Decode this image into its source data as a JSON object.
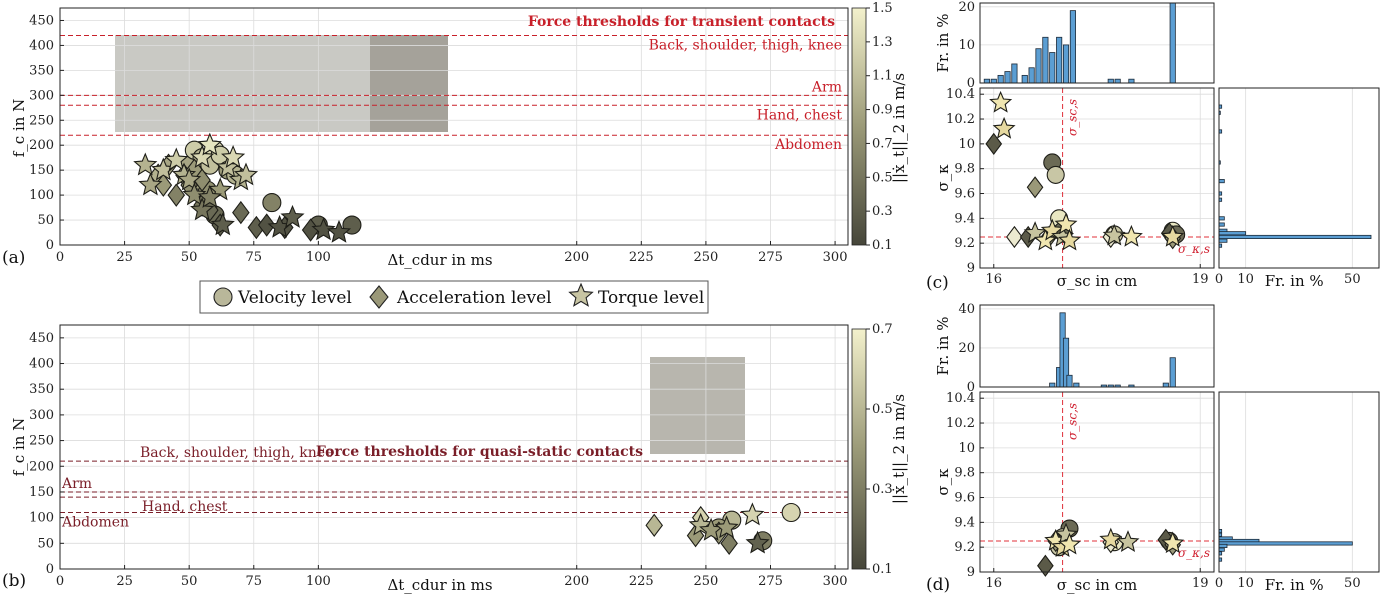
{
  "panel_labels": [
    "(a)",
    "(b)",
    "(c)",
    "(d)"
  ],
  "legend": {
    "items": [
      "Velocity level",
      "Acceleration level",
      "Torque level"
    ]
  },
  "colors": {
    "threshold_a": "#c8202a",
    "threshold_b": "#7a1e28",
    "hist": "#5b9ed3",
    "colormap": [
      "#46463a",
      "#f3f1cc"
    ]
  },
  "chart_data": [
    {
      "id": "a",
      "type": "scatter",
      "title": "Force thresholds for transient contacts",
      "xlabel": "Δt_cdur in ms",
      "ylabel": "f_c in N",
      "xlim": [
        0,
        305
      ],
      "ylim": [
        0,
        475
      ],
      "xticks": [
        "0",
        "25",
        "50",
        "75",
        "100",
        "200",
        "225",
        "250",
        "275",
        "300"
      ],
      "yticks": [
        "0",
        "50",
        "100",
        "150",
        "200",
        "250",
        "300",
        "350",
        "400",
        "450"
      ],
      "colorbar": {
        "label": "||ẋ_t||_2 in m/s",
        "range": [
          0.1,
          1.5
        ],
        "ticks": [
          "0.1",
          "0.3",
          "0.5",
          "0.7",
          "0.9",
          "1.1",
          "1.3",
          "1.5"
        ]
      },
      "thresholds": [
        {
          "label": "Back, shoulder, thigh, knee",
          "value": 420
        },
        {
          "label": "Arm",
          "value": 300
        },
        {
          "label": "Hand, chest",
          "value": 280
        },
        {
          "label": "Abdomen",
          "value": 220
        }
      ],
      "series": [
        {
          "name": "Velocity level",
          "marker": "circle",
          "points": [
            [
              50,
              160,
              0.9
            ],
            [
              52,
              190,
              1.2
            ],
            [
              55,
              175,
              1.0
            ],
            [
              60,
              190,
              1.3
            ],
            [
              58,
              160,
              1.1
            ],
            [
              62,
              180,
              1.2
            ],
            [
              65,
              150,
              0.8
            ],
            [
              68,
              140,
              1.0
            ],
            [
              60,
              60,
              0.4
            ],
            [
              82,
              85,
              0.6
            ],
            [
              100,
              40,
              0.3
            ],
            [
              113,
              40,
              0.3
            ],
            [
              57,
              110,
              0.7
            ],
            [
              53,
              130,
              0.8
            ]
          ]
        },
        {
          "name": "Acceleration level",
          "marker": "diamond",
          "points": [
            [
              38,
              140,
              1.0
            ],
            [
              40,
              120,
              0.8
            ],
            [
              42,
              160,
              0.9
            ],
            [
              48,
              140,
              0.9
            ],
            [
              50,
              120,
              0.7
            ],
            [
              45,
              100,
              0.6
            ],
            [
              52,
              150,
              0.8
            ],
            [
              55,
              80,
              0.5
            ],
            [
              58,
              70,
              0.4
            ],
            [
              62,
              40,
              0.3
            ],
            [
              70,
              65,
              0.4
            ],
            [
              76,
              35,
              0.3
            ],
            [
              80,
              40,
              0.2
            ],
            [
              87,
              35,
              0.2
            ],
            [
              97,
              30,
              0.2
            ],
            [
              55,
              130,
              0.7
            ]
          ]
        },
        {
          "name": "Torque level",
          "marker": "star",
          "points": [
            [
              33,
              160,
              1.0
            ],
            [
              35,
              120,
              0.9
            ],
            [
              40,
              150,
              1.1
            ],
            [
              45,
              170,
              1.2
            ],
            [
              48,
              140,
              1.0
            ],
            [
              50,
              130,
              0.9
            ],
            [
              55,
              175,
              1.3
            ],
            [
              58,
              200,
              1.4
            ],
            [
              62,
              110,
              0.8
            ],
            [
              65,
              155,
              1.1
            ],
            [
              67,
              175,
              1.3
            ],
            [
              70,
              130,
              1.0
            ],
            [
              72,
              140,
              1.1
            ],
            [
              52,
              100,
              0.7
            ],
            [
              55,
              70,
              0.5
            ],
            [
              63,
              40,
              0.3
            ],
            [
              85,
              35,
              0.2
            ],
            [
              90,
              55,
              0.3
            ],
            [
              102,
              30,
              0.2
            ],
            [
              108,
              25,
              0.2
            ],
            [
              58,
              95,
              0.6
            ]
          ]
        }
      ]
    },
    {
      "id": "b",
      "type": "scatter",
      "title": "Force thresholds for quasi-static contacts",
      "xlabel": "Δt_cdur in ms",
      "ylabel": "f_c in N",
      "xlim": [
        0,
        305
      ],
      "ylim": [
        0,
        475
      ],
      "xticks": [
        "0",
        "25",
        "50",
        "75",
        "100",
        "200",
        "225",
        "250",
        "275",
        "300"
      ],
      "yticks": [
        "0",
        "50",
        "100",
        "150",
        "200",
        "250",
        "300",
        "350",
        "400",
        "450"
      ],
      "colorbar": {
        "label": "||ẋ_t||_2 in m/s",
        "range": [
          0.1,
          0.7
        ],
        "ticks": [
          "0.1",
          "0.3",
          "0.5",
          "0.7"
        ]
      },
      "thresholds": [
        {
          "label": "Back, shoulder, thigh, knee",
          "value": 210
        },
        {
          "label": "Arm",
          "value": 150
        },
        {
          "label": "Hand, chest",
          "value": 140
        },
        {
          "label": "Abdomen",
          "value": 110
        }
      ],
      "series": [
        {
          "name": "Velocity level",
          "marker": "circle",
          "points": [
            [
              260,
              95,
              0.5
            ],
            [
              272,
              55,
              0.3
            ],
            [
              283,
              110,
              0.6
            ],
            [
              255,
              80,
              0.4
            ]
          ]
        },
        {
          "name": "Acceleration level",
          "marker": "diamond",
          "points": [
            [
              230,
              85,
              0.5
            ],
            [
              246,
              65,
              0.4
            ],
            [
              248,
              100,
              0.6
            ],
            [
              255,
              70,
              0.4
            ],
            [
              259,
              50,
              0.3
            ]
          ]
        },
        {
          "name": "Torque level",
          "marker": "star",
          "points": [
            [
              248,
              85,
              0.5
            ],
            [
              252,
              75,
              0.4
            ],
            [
              258,
              80,
              0.4
            ],
            [
              268,
              105,
              0.6
            ],
            [
              270,
              50,
              0.2
            ]
          ]
        }
      ]
    },
    {
      "id": "c",
      "type": "scatter",
      "xlabel": "σ_sc in cm",
      "ylabel": "σ_κ",
      "xlim": [
        15.8,
        19.2
      ],
      "ylim": [
        9.0,
        10.45
      ],
      "xticks": [
        "16",
        "19"
      ],
      "yticks": [
        "9",
        "9.2",
        "9.4",
        "9.6",
        "9.8",
        "10",
        "10.2",
        "10.4"
      ],
      "ref_lines": {
        "x": 17.0,
        "y": 9.25,
        "x_label": "σ_sc,s",
        "y_label": "σ_κ,s"
      },
      "series": [
        {
          "name": "Velocity level",
          "marker": "circle",
          "points": [
            [
              16.85,
              9.85
            ],
            [
              16.9,
              9.75
            ],
            [
              16.95,
              9.4
            ],
            [
              17.0,
              9.3
            ],
            [
              17.75,
              9.27
            ],
            [
              18.6,
              9.3
            ],
            [
              18.65,
              9.27
            ]
          ]
        },
        {
          "name": "Acceleration level",
          "marker": "diamond",
          "points": [
            [
              16.0,
              10.0
            ],
            [
              16.6,
              9.65
            ],
            [
              16.3,
              9.25
            ],
            [
              16.5,
              9.25
            ],
            [
              16.8,
              9.25
            ],
            [
              17.7,
              9.25
            ],
            [
              18.55,
              9.28
            ],
            [
              18.6,
              9.24
            ]
          ]
        },
        {
          "name": "Torque level",
          "marker": "star",
          "points": [
            [
              16.1,
              10.33
            ],
            [
              16.15,
              10.12
            ],
            [
              16.6,
              9.28
            ],
            [
              16.75,
              9.22
            ],
            [
              16.85,
              9.3
            ],
            [
              17.0,
              9.25
            ],
            [
              17.05,
              9.35
            ],
            [
              17.1,
              9.22
            ],
            [
              17.75,
              9.26
            ],
            [
              18.0,
              9.25
            ],
            [
              18.6,
              9.25
            ]
          ]
        }
      ],
      "hist_top": {
        "ylabel": "Fr. in %",
        "yticks": [
          "0",
          "10",
          "20"
        ],
        "ylim": [
          0,
          21
        ],
        "bins": [
          [
            15.9,
            1
          ],
          [
            16.0,
            1
          ],
          [
            16.1,
            2
          ],
          [
            16.2,
            3
          ],
          [
            16.3,
            5
          ],
          [
            16.45,
            2
          ],
          [
            16.55,
            4
          ],
          [
            16.65,
            9
          ],
          [
            16.75,
            12
          ],
          [
            16.85,
            8
          ],
          [
            16.95,
            12
          ],
          [
            17.05,
            10
          ],
          [
            17.15,
            19
          ],
          [
            17.7,
            1
          ],
          [
            17.8,
            1
          ],
          [
            18.0,
            1
          ],
          [
            18.6,
            21
          ]
        ]
      },
      "hist_right": {
        "xlabel": "Fr. in %",
        "xticks": [
          "0",
          "10",
          "50"
        ],
        "xlim": [
          0,
          60
        ],
        "bins": [
          [
            10.3,
            1
          ],
          [
            10.25,
            0.5
          ],
          [
            10.1,
            1
          ],
          [
            9.85,
            0.5
          ],
          [
            9.7,
            2
          ],
          [
            9.6,
            1
          ],
          [
            9.55,
            1
          ],
          [
            9.4,
            2
          ],
          [
            9.35,
            2
          ],
          [
            9.3,
            3
          ],
          [
            9.28,
            10
          ],
          [
            9.25,
            57
          ],
          [
            9.22,
            3
          ],
          [
            9.18,
            1
          ]
        ]
      }
    },
    {
      "id": "d",
      "type": "scatter",
      "xlabel": "σ_sc in cm",
      "ylabel": "σ_κ",
      "xlim": [
        15.8,
        19.2
      ],
      "ylim": [
        9.0,
        10.45
      ],
      "xticks": [
        "16",
        "19"
      ],
      "yticks": [
        "9",
        "9.2",
        "9.4",
        "9.6",
        "9.8",
        "10",
        "10.2",
        "10.4"
      ],
      "ref_lines": {
        "x": 17.0,
        "y": 9.25,
        "x_label": "σ_sc,s",
        "y_label": "σ_κ,s"
      },
      "series": [
        {
          "name": "Velocity level",
          "marker": "circle",
          "points": [
            [
              17.1,
              9.35
            ],
            [
              17.0,
              9.28
            ],
            [
              17.75,
              9.24
            ],
            [
              18.55,
              9.25
            ],
            [
              16.95,
              9.2
            ]
          ]
        },
        {
          "name": "Acceleration level",
          "marker": "diamond",
          "points": [
            [
              16.75,
              9.05
            ],
            [
              16.9,
              9.25
            ],
            [
              17.7,
              9.24
            ],
            [
              18.5,
              9.26
            ],
            [
              18.6,
              9.22
            ]
          ]
        },
        {
          "name": "Torque level",
          "marker": "star",
          "points": [
            [
              16.9,
              9.25
            ],
            [
              17.0,
              9.2
            ],
            [
              17.05,
              9.3
            ],
            [
              17.1,
              9.22
            ],
            [
              17.7,
              9.26
            ],
            [
              17.95,
              9.24
            ],
            [
              18.6,
              9.23
            ]
          ]
        }
      ],
      "hist_top": {
        "ylabel": "Fr. in %",
        "yticks": [
          "0",
          "20",
          "40"
        ],
        "ylim": [
          0,
          42
        ],
        "bins": [
          [
            16.85,
            2
          ],
          [
            16.95,
            10
          ],
          [
            17.0,
            38
          ],
          [
            17.05,
            25
          ],
          [
            17.1,
            6
          ],
          [
            17.2,
            2
          ],
          [
            17.6,
            1
          ],
          [
            17.7,
            1
          ],
          [
            17.8,
            1
          ],
          [
            18.0,
            1
          ],
          [
            18.5,
            2
          ],
          [
            18.6,
            15
          ]
        ]
      },
      "hist_right": {
        "xlabel": "Fr. in %",
        "xticks": [
          "0",
          "10",
          "50"
        ],
        "xlim": [
          0,
          60
        ],
        "bins": [
          [
            9.33,
            1
          ],
          [
            9.3,
            1
          ],
          [
            9.27,
            5
          ],
          [
            9.25,
            15
          ],
          [
            9.23,
            50
          ],
          [
            9.21,
            3
          ],
          [
            9.18,
            2
          ],
          [
            9.15,
            1
          ],
          [
            9.1,
            1
          ]
        ]
      }
    }
  ]
}
